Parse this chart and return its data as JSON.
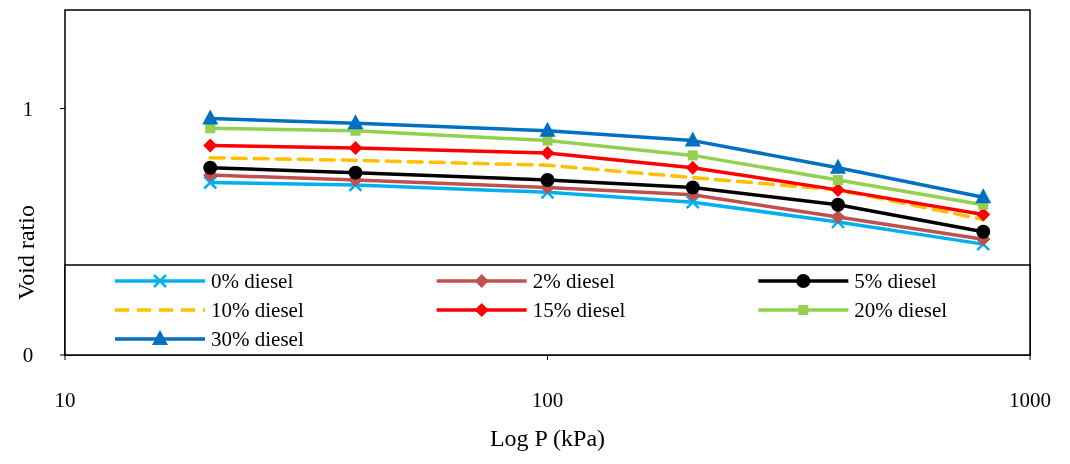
{
  "chart_data": {
    "type": "line",
    "xlabel": "Log P (kPa)",
    "ylabel": "Void ratio",
    "log": "x",
    "xlim": [
      10,
      1000
    ],
    "xticks": [
      10,
      100,
      1000
    ],
    "ylim": [
      0,
      1.4
    ],
    "yticks": [
      0,
      1
    ],
    "grid": false,
    "legend": "bottom",
    "x": [
      20,
      40,
      100,
      200,
      400,
      800
    ],
    "series": [
      {
        "name": "0% diesel",
        "color": "#00b0f0",
        "marker": "cross",
        "values": [
          0.7,
          0.69,
          0.66,
          0.62,
          0.54,
          0.45
        ]
      },
      {
        "name": "2% diesel",
        "color": "#c0504d",
        "marker": "diamond",
        "values": [
          0.73,
          0.71,
          0.68,
          0.65,
          0.56,
          0.47
        ]
      },
      {
        "name": "5% diesel",
        "color": "#000000",
        "marker": "circle",
        "values": [
          0.76,
          0.74,
          0.71,
          0.68,
          0.61,
          0.5
        ]
      },
      {
        "name": "10% diesel",
        "color": "#ffc000",
        "marker": "none",
        "line_style": "dashed",
        "values": [
          0.8,
          0.79,
          0.77,
          0.72,
          0.67,
          0.55
        ]
      },
      {
        "name": "15% diesel",
        "color": "#ff0000",
        "marker": "diamond",
        "values": [
          0.85,
          0.84,
          0.82,
          0.76,
          0.67,
          0.57
        ]
      },
      {
        "name": "20% diesel",
        "color": "#92d050",
        "marker": "square",
        "values": [
          0.92,
          0.91,
          0.87,
          0.81,
          0.71,
          0.61
        ]
      },
      {
        "name": "30% diesel",
        "color": "#0070c0",
        "marker": "triangle",
        "values": [
          0.96,
          0.94,
          0.91,
          0.87,
          0.76,
          0.64
        ]
      }
    ]
  }
}
